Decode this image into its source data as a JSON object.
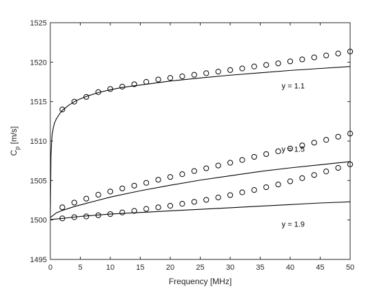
{
  "chart_data": {
    "type": "line",
    "title": "",
    "xlabel": "Frequency [MHz]",
    "ylabel_main": "C",
    "ylabel_sub": "p",
    "ylabel_unit": " [m/s]",
    "xlim": [
      0,
      50
    ],
    "ylim": [
      1495,
      1525
    ],
    "xticks": [
      0,
      5,
      10,
      15,
      20,
      25,
      30,
      35,
      40,
      45,
      50
    ],
    "yticks": [
      1495,
      1500,
      1505,
      1510,
      1515,
      1520,
      1525
    ],
    "grid": false,
    "box": true,
    "colors": {
      "line": "#000000",
      "marker": "#000000",
      "axis": "#262626"
    },
    "marker_x": [
      2,
      4,
      6,
      8,
      10,
      12,
      14,
      16,
      18,
      20,
      22,
      24,
      26,
      28,
      30,
      32,
      34,
      36,
      38,
      40,
      42,
      44,
      46,
      48,
      50
    ],
    "series": [
      {
        "curve_x": [
          0,
          0.1,
          0.2,
          0.3,
          0.5,
          0.7,
          1,
          1.5,
          2,
          3,
          4,
          5,
          6,
          8,
          10,
          12,
          15,
          20,
          25,
          30,
          35,
          40,
          45,
          50
        ],
        "curve_y": [
          1500,
          1508.0,
          1509.8,
          1510.8,
          1511.7,
          1512.3,
          1512.8,
          1513.4,
          1513.9,
          1514.5,
          1515.0,
          1515.35,
          1515.65,
          1516.15,
          1516.5,
          1516.8,
          1517.1,
          1517.6,
          1518.0,
          1518.35,
          1518.65,
          1518.95,
          1519.2,
          1519.45
        ],
        "markers": [
          1514.0,
          1515.0,
          1515.6,
          1516.2,
          1516.6,
          1516.9,
          1517.2,
          1517.5,
          1517.8,
          1518.0,
          1518.2,
          1518.4,
          1518.6,
          1518.8,
          1519.0,
          1519.2,
          1519.45,
          1519.65,
          1519.85,
          1520.1,
          1520.35,
          1520.6,
          1520.85,
          1521.1,
          1521.35
        ],
        "annotation": {
          "text": "y = 1.1",
          "x": 40.5,
          "y": 1517.0
        }
      },
      {
        "curve_x": [
          0,
          1,
          2,
          4,
          6,
          8,
          10,
          15,
          20,
          25,
          30,
          35,
          40,
          45,
          50
        ],
        "curve_y": [
          1500.3,
          1500.9,
          1501.2,
          1501.7,
          1502.1,
          1502.5,
          1502.9,
          1503.7,
          1504.4,
          1505.05,
          1505.6,
          1506.15,
          1506.6,
          1507.0,
          1507.4
        ],
        "markers": [
          1501.6,
          1502.2,
          1502.7,
          1503.2,
          1503.6,
          1504.0,
          1504.35,
          1504.7,
          1505.1,
          1505.45,
          1505.8,
          1506.2,
          1506.55,
          1506.9,
          1507.25,
          1507.6,
          1508.0,
          1508.35,
          1508.7,
          1509.05,
          1509.45,
          1509.8,
          1510.15,
          1510.55,
          1510.95
        ],
        "annotation": {
          "text": "y = 1.5",
          "x": 40.5,
          "y": 1509.0
        }
      },
      {
        "curve_x": [
          0,
          2,
          5,
          10,
          15,
          20,
          25,
          30,
          35,
          40,
          45,
          50
        ],
        "curve_y": [
          1500.05,
          1500.2,
          1500.45,
          1500.75,
          1500.95,
          1501.15,
          1501.35,
          1501.55,
          1501.75,
          1501.95,
          1502.15,
          1502.3
        ],
        "markers": [
          1500.2,
          1500.35,
          1500.45,
          1500.6,
          1500.75,
          1500.95,
          1501.15,
          1501.4,
          1501.6,
          1501.8,
          1502.05,
          1502.3,
          1502.55,
          1502.85,
          1503.15,
          1503.5,
          1503.8,
          1504.15,
          1504.5,
          1504.9,
          1505.3,
          1505.7,
          1506.15,
          1506.6,
          1507.05
        ],
        "annotation": {
          "text": "y = 1.9",
          "x": 40.5,
          "y": 1499.5
        }
      }
    ]
  }
}
